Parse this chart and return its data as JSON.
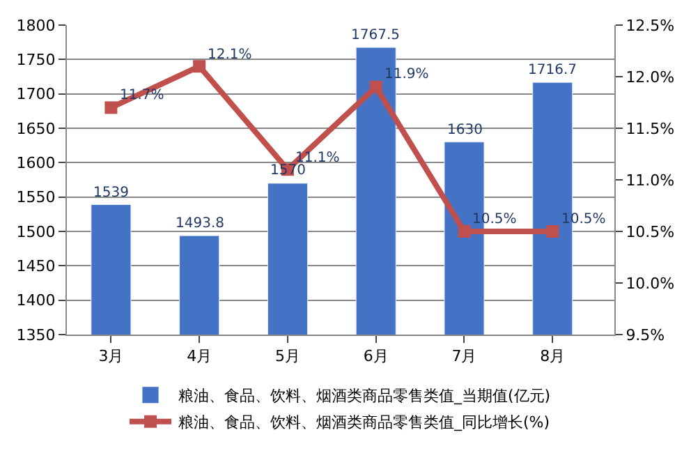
{
  "chart_data": {
    "type": "bar",
    "categories": [
      "3月",
      "4月",
      "5月",
      "6月",
      "7月",
      "8月"
    ],
    "series": [
      {
        "name": "粮油、食品、饮料、烟酒类商品零售类值_当期值(亿元)",
        "color": "#4472c4",
        "values": [
          1539,
          1493.8,
          1570,
          1767.5,
          1630,
          1716.7
        ],
        "value_labels": [
          "1539",
          "1493.8",
          "1570",
          "1767.5",
          "1630",
          "1716.7"
        ]
      },
      {
        "name": "粮油、食品、饮料、烟酒类商品零售类值_同比增长(%)",
        "type": "line",
        "axis": "y2",
        "color": "#c0504d",
        "marker": "square",
        "values": [
          11.7,
          12.1,
          11.1,
          11.9,
          10.5,
          10.5
        ],
        "value_labels": [
          "11.7%",
          "12.1%",
          "11.1%",
          "11.9%",
          "10.5%",
          "10.5%"
        ]
      }
    ],
    "ylim": [
      1350,
      1800
    ],
    "yticks": [
      1350,
      1400,
      1450,
      1500,
      1550,
      1600,
      1650,
      1700,
      1750,
      1800
    ],
    "y2lim": [
      9.5,
      12.5
    ],
    "y2ticks": [
      {
        "value": 9.5,
        "label": "9.5%"
      },
      {
        "value": 10,
        "label": "10.0%"
      },
      {
        "value": 10.5,
        "label": "10.5%"
      },
      {
        "value": 11,
        "label": "11.0%"
      },
      {
        "value": 11.5,
        "label": "11.5%"
      },
      {
        "value": 12,
        "label": "12.0%"
      },
      {
        "value": 12.5,
        "label": "12.5%"
      }
    ],
    "grid": "y",
    "legend": "bottom"
  }
}
